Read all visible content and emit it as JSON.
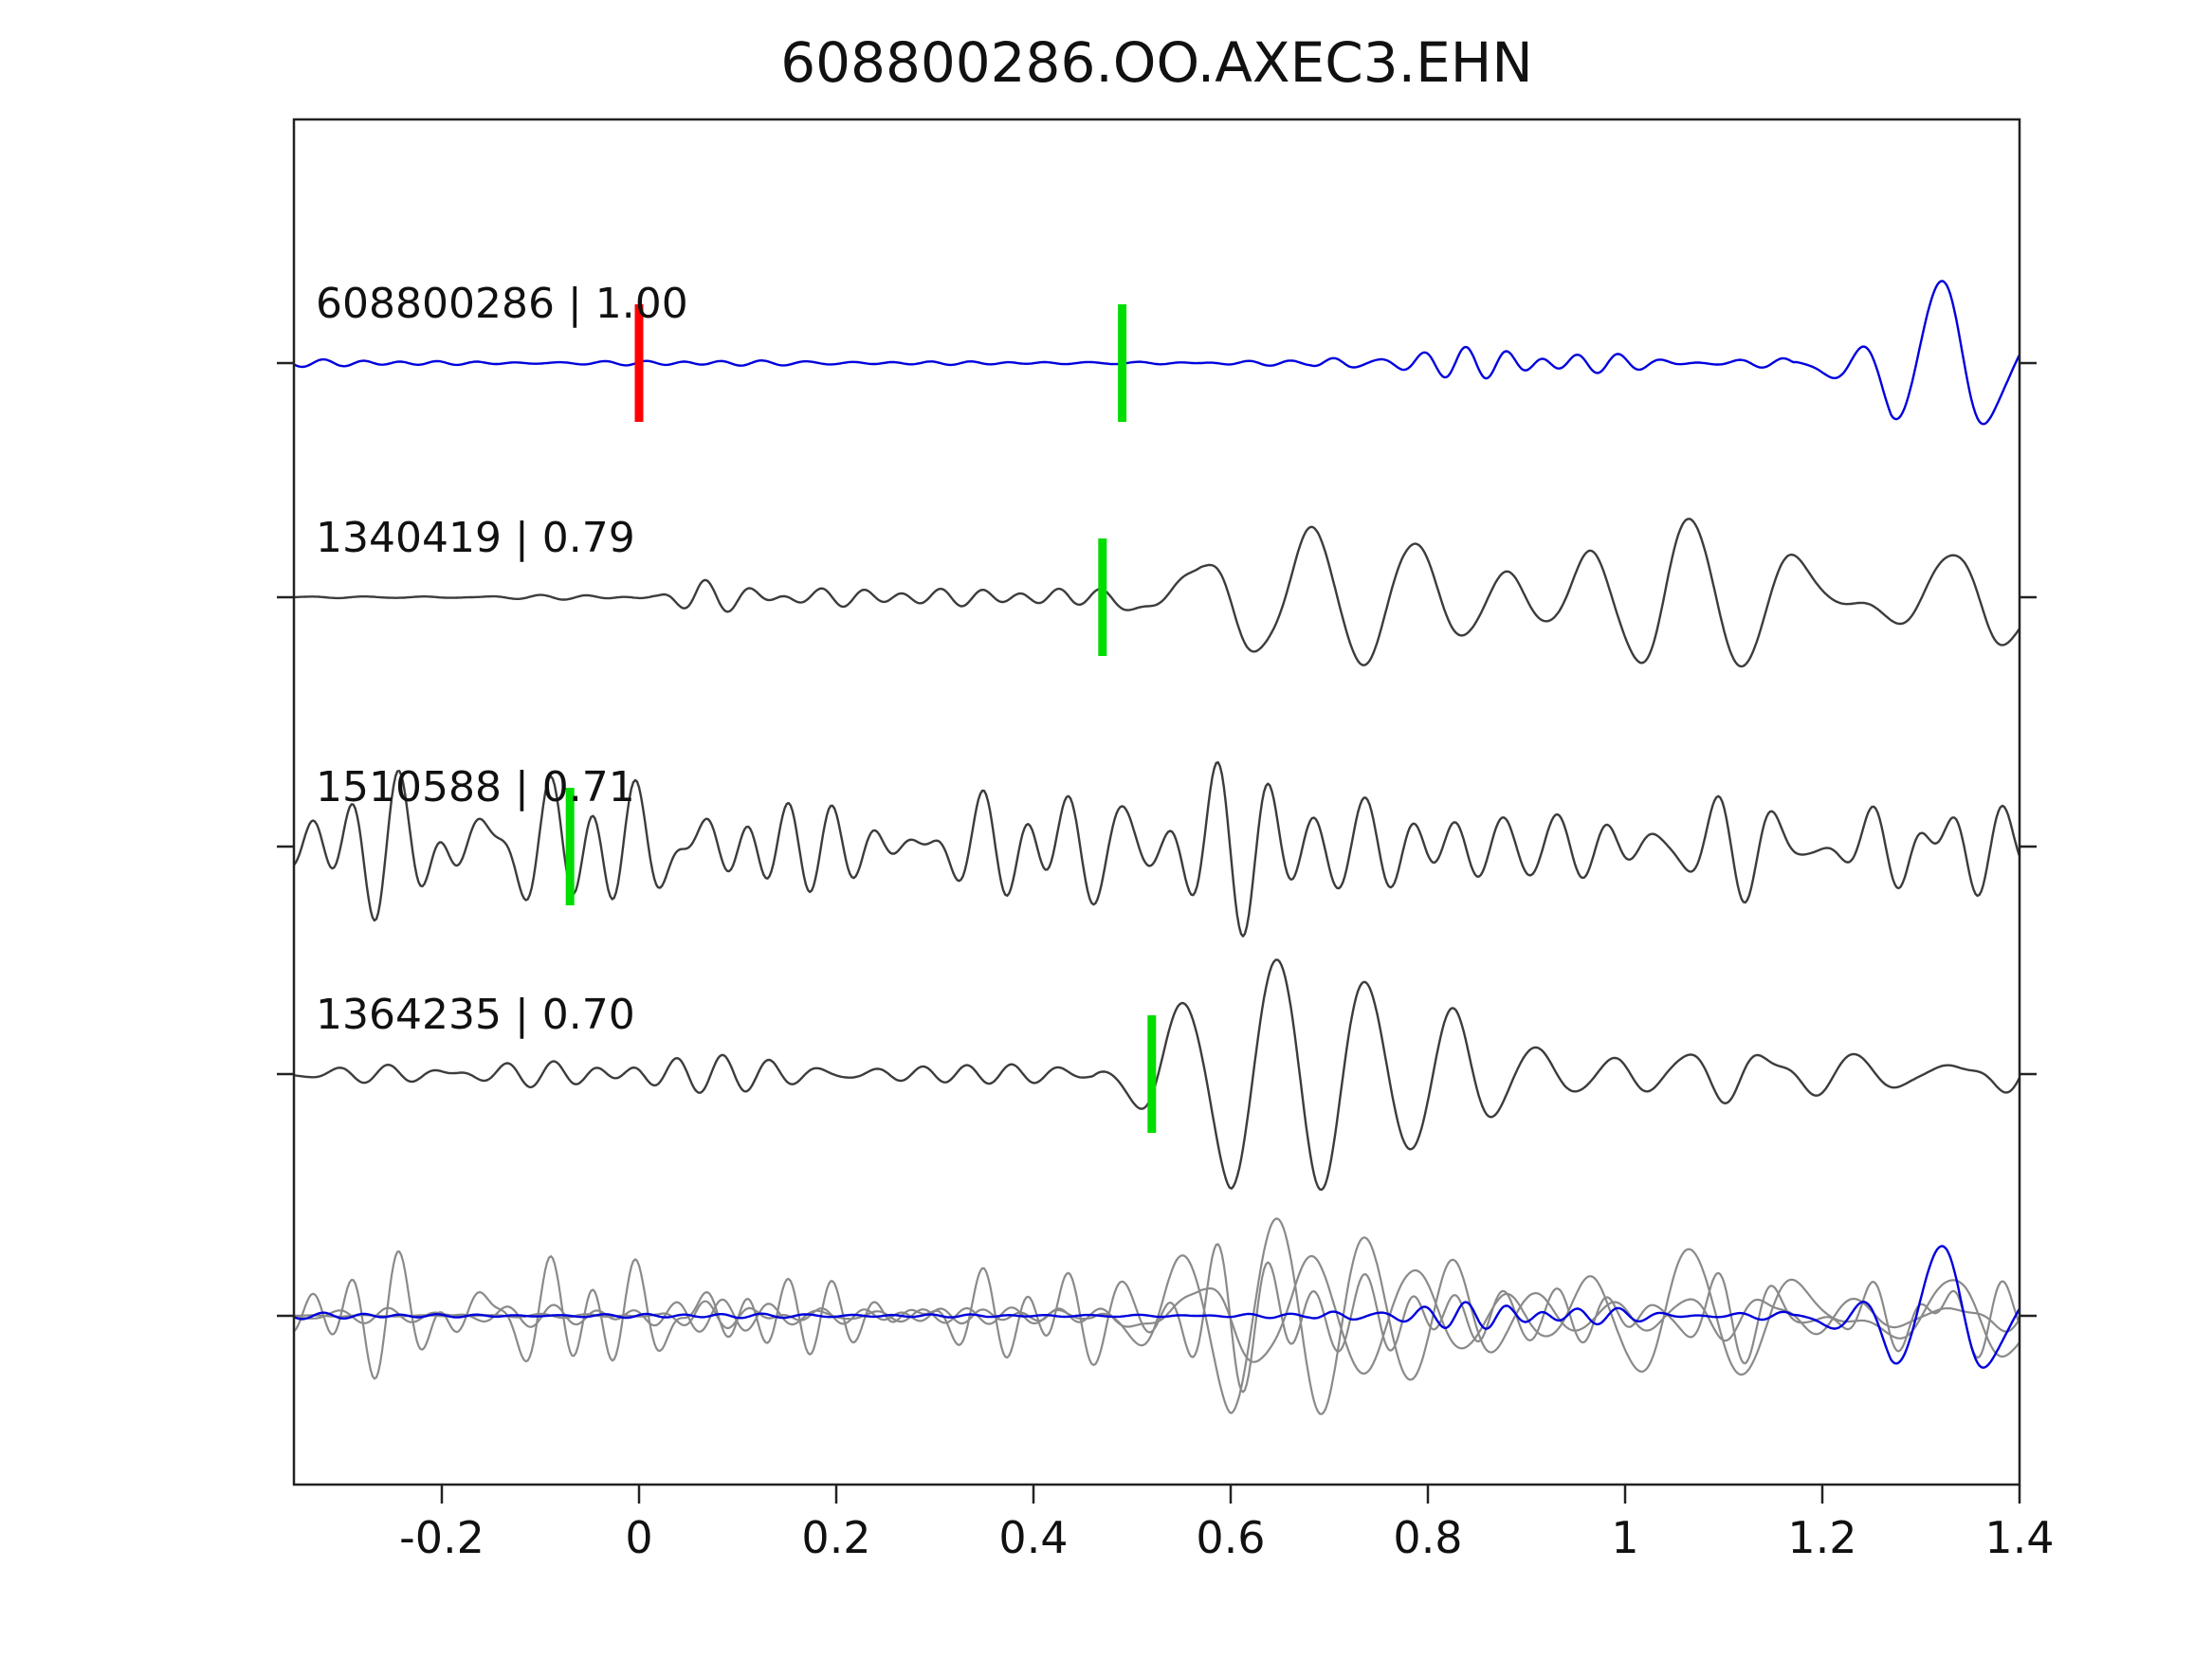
{
  "title": "608800286.OO.AXEC3.EHN",
  "chart_data": {
    "type": "line",
    "title": "608800286.OO.AXEC3.EHN",
    "xlabel": "",
    "ylabel": "",
    "xlim": [
      -0.35,
      1.4
    ],
    "x_ticks": [
      -0.2,
      0,
      0.2,
      0.4,
      0.6,
      0.8,
      1,
      1.2,
      1.4
    ],
    "x_tick_labels": [
      "-0.2",
      "0",
      "0.2",
      "0.4",
      "0.6",
      "0.8",
      "1",
      "1.2",
      "1.4"
    ],
    "grid": false,
    "legend": "none",
    "colors": {
      "reference": "#0000dd",
      "match": "#3c3c3c",
      "overlay_gray": "#8a8a8a",
      "pick_green": "#00dd00",
      "pick_red": "#ff0000",
      "axis": "#222222"
    },
    "traces": [
      {
        "id": "608800286",
        "correlation": "1.00",
        "label": "608800286 | 1.00",
        "color": "#0000dd",
        "seed": 7,
        "picks": [
          {
            "x": 0.0,
            "color": "#ff0000"
          },
          {
            "x": 0.49,
            "color": "#00dd00"
          }
        ],
        "bands": [
          {
            "f0": 18,
            "f1": 28,
            "n": 12,
            "env": [
              [
                -0.35,
                4
              ],
              [
                0.68,
                4
              ],
              [
                0.72,
                22
              ],
              [
                0.95,
                20
              ],
              [
                1.12,
                16
              ],
              [
                1.2,
                8
              ],
              [
                1.4,
                6
              ]
            ]
          },
          {
            "f0": 8,
            "f1": 13,
            "n": 7,
            "env": [
              [
                -0.35,
                0
              ],
              [
                1.17,
                0
              ],
              [
                1.22,
                70
              ],
              [
                1.27,
                170
              ],
              [
                1.33,
                120
              ],
              [
                1.4,
                40
              ]
            ]
          }
        ]
      },
      {
        "id": "1340419",
        "correlation": "0.79",
        "label": "1340419 | 0.79",
        "color": "#3c3c3c",
        "seed": 21,
        "picks": [
          {
            "x": 0.47,
            "color": "#00dd00"
          }
        ],
        "bands": [
          {
            "f0": 16,
            "f1": 26,
            "n": 12,
            "env": [
              [
                -0.35,
                3
              ],
              [
                0.02,
                3
              ],
              [
                0.06,
                18
              ],
              [
                0.42,
                18
              ],
              [
                0.5,
                10
              ],
              [
                1.4,
                8
              ]
            ]
          },
          {
            "f0": 7.5,
            "f1": 12,
            "n": 8,
            "env": [
              [
                -0.35,
                0
              ],
              [
                0.44,
                0
              ],
              [
                0.5,
                80
              ],
              [
                0.57,
                170
              ],
              [
                0.66,
                120
              ],
              [
                0.78,
                80
              ],
              [
                0.95,
                75
              ],
              [
                1.1,
                85
              ],
              [
                1.25,
                75
              ],
              [
                1.4,
                60
              ]
            ]
          }
        ]
      },
      {
        "id": "1510588",
        "correlation": "0.71",
        "label": "1510588 | 0.71",
        "color": "#3c3c3c",
        "seed": 33,
        "picks": [
          {
            "x": -0.07,
            "color": "#00dd00"
          }
        ],
        "bands": [
          {
            "f0": 10,
            "f1": 26,
            "n": 14,
            "env": [
              [
                -0.35,
                85
              ],
              [
                0.05,
                115
              ],
              [
                0.15,
                105
              ],
              [
                0.35,
                100
              ],
              [
                0.6,
                95
              ],
              [
                0.9,
                85
              ],
              [
                1.2,
                80
              ],
              [
                1.4,
                70
              ]
            ]
          }
        ]
      },
      {
        "id": "1364235",
        "correlation": "0.70",
        "label": "1364235 | 0.70",
        "color": "#3c3c3c",
        "seed": 55,
        "picks": [
          {
            "x": 0.52,
            "color": "#00dd00"
          }
        ],
        "bands": [
          {
            "f0": 16,
            "f1": 24,
            "n": 12,
            "env": [
              [
                -0.35,
                10
              ],
              [
                0.05,
                20
              ],
              [
                0.45,
                20
              ],
              [
                0.52,
                12
              ],
              [
                1.4,
                10
              ]
            ]
          },
          {
            "f0": 9,
            "f1": 13,
            "n": 8,
            "env": [
              [
                -0.35,
                0
              ],
              [
                0.46,
                0
              ],
              [
                0.52,
                80
              ],
              [
                0.6,
                180
              ],
              [
                0.72,
                120
              ],
              [
                0.85,
                70
              ],
              [
                1.0,
                60
              ],
              [
                1.2,
                45
              ],
              [
                1.4,
                40
              ]
            ]
          }
        ]
      }
    ],
    "overlay": {
      "order": [
        1,
        2,
        3
      ],
      "top": 0,
      "scale": 0.85
    }
  }
}
